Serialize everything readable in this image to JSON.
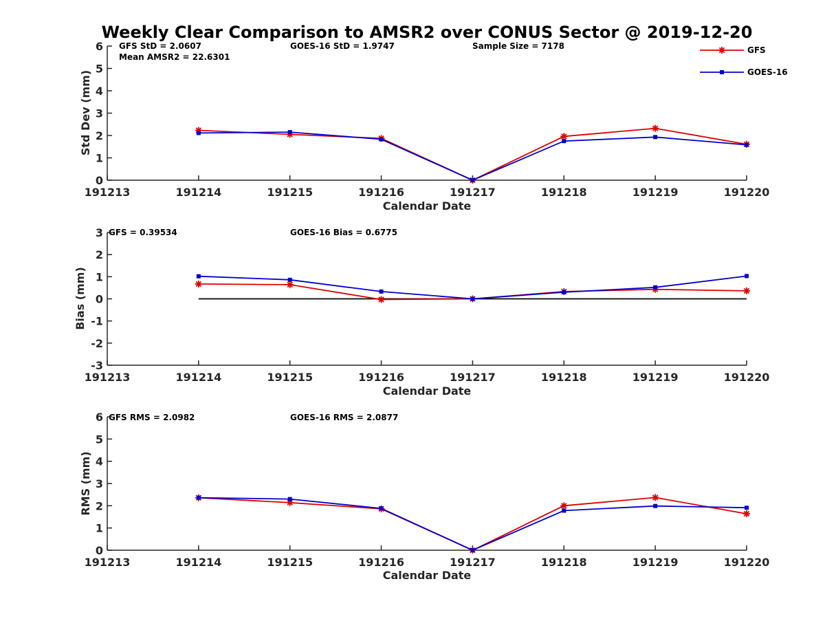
{
  "title": "Weekly Clear Comparison to AMSR2 over CONUS Sector @ 2019-12-20",
  "colors": {
    "GFS": "#e00000",
    "GOES-16": "#0000d0",
    "axis": "#262626",
    "zero_line": "#000000"
  },
  "legend": {
    "placement": "top-right of first panel",
    "entries": [
      {
        "label": "GFS",
        "marker": "asterisk"
      },
      {
        "label": "GOES-16",
        "marker": "square"
      }
    ]
  },
  "chart_data": [
    {
      "type": "line",
      "ylabel": "Std Dev (mm)",
      "xlabel": "Calendar Date",
      "x_ticks": [
        "191213",
        "191214",
        "191215",
        "191216",
        "191217",
        "191218",
        "191219",
        "191220"
      ],
      "xlim": [
        0,
        7
      ],
      "ylim": [
        0,
        6
      ],
      "y_ticks": [
        "0",
        "1",
        "2",
        "3",
        "4",
        "5",
        "6"
      ],
      "annotations": [
        "GFS StD = 2.0607",
        "Mean AMSR2 = 22.6301",
        "GOES-16 StD = 1.9747",
        "Sample Size = 7178"
      ],
      "series": [
        {
          "name": "GFS",
          "x": [
            1,
            2,
            3,
            4,
            5,
            6,
            7
          ],
          "values": [
            2.23,
            2.05,
            1.87,
            0.0,
            1.96,
            2.32,
            1.61
          ]
        },
        {
          "name": "GOES-16",
          "x": [
            1,
            2,
            3,
            4,
            5,
            6,
            7
          ],
          "values": [
            2.11,
            2.15,
            1.83,
            0.0,
            1.75,
            1.93,
            1.58
          ]
        }
      ]
    },
    {
      "type": "line",
      "ylabel": "Bias (mm)",
      "xlabel": "Calendar Date",
      "x_ticks": [
        "191213",
        "191214",
        "191215",
        "191216",
        "191217",
        "191218",
        "191219",
        "191220"
      ],
      "xlim": [
        0,
        7
      ],
      "ylim": [
        -3,
        3
      ],
      "y_ticks": [
        "-3",
        "-2",
        "-1",
        "0",
        "1",
        "2",
        "3"
      ],
      "annotations": [
        "GFS = 0.39534",
        "GOES-16 Bias  = 0.6775"
      ],
      "zero_line": true,
      "series": [
        {
          "name": "GFS",
          "x": [
            1,
            2,
            3,
            4,
            5,
            6,
            7
          ],
          "values": [
            0.67,
            0.64,
            -0.03,
            0.0,
            0.33,
            0.43,
            0.36
          ]
        },
        {
          "name": "GOES-16",
          "x": [
            1,
            2,
            3,
            4,
            5,
            6,
            7
          ],
          "values": [
            1.02,
            0.86,
            0.33,
            0.0,
            0.3,
            0.52,
            1.03
          ]
        }
      ]
    },
    {
      "type": "line",
      "ylabel": "RMS (mm)",
      "xlabel": "Calendar Date",
      "x_ticks": [
        "191213",
        "191214",
        "191215",
        "191216",
        "191217",
        "191218",
        "191219",
        "191220"
      ],
      "xlim": [
        0,
        7
      ],
      "ylim": [
        0,
        6
      ],
      "y_ticks": [
        "0",
        "1",
        "2",
        "3",
        "4",
        "5",
        "6"
      ],
      "annotations": [
        "GFS RMS = 2.0982",
        "GOES-16 RMS = 2.0877"
      ],
      "series": [
        {
          "name": "GFS",
          "x": [
            1,
            2,
            3,
            4,
            5,
            6,
            7
          ],
          "values": [
            2.36,
            2.14,
            1.86,
            0.0,
            2.0,
            2.37,
            1.64
          ]
        },
        {
          "name": "GOES-16",
          "x": [
            1,
            2,
            3,
            4,
            5,
            6,
            7
          ],
          "values": [
            2.36,
            2.3,
            1.88,
            0.0,
            1.78,
            1.99,
            1.91
          ]
        }
      ]
    }
  ]
}
